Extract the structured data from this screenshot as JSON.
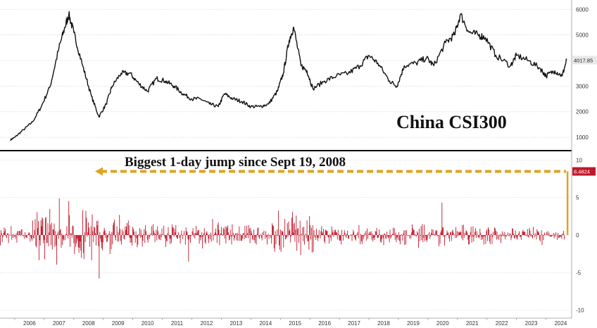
{
  "colors": {
    "price_line": "#111111",
    "return_bars": "#c0182b",
    "arrow": "#e0a321",
    "last_value_price_bg": "#e8e8e8",
    "last_value_return_bg": "#c0182b",
    "divider": "#000000"
  },
  "chart_data": [
    {
      "type": "line",
      "title": "China CSI300",
      "series": [
        {
          "x": [
            2005.85,
            2006.0,
            2006.3,
            2006.6,
            2006.9,
            2007.2,
            2007.5,
            2007.7,
            2007.83,
            2008.0,
            2008.3,
            2008.6,
            2008.85,
            2009.1,
            2009.3,
            2009.6,
            2009.9,
            2010.2,
            2010.5,
            2010.8,
            2011.1,
            2011.4,
            2011.7,
            2012.0,
            2012.3,
            2012.6,
            2012.9,
            2013.1,
            2013.4,
            2013.7,
            2014.0,
            2014.3,
            2014.6,
            2014.9,
            2015.1,
            2015.3,
            2015.45,
            2015.7,
            2015.9,
            2016.1,
            2016.5,
            2016.9,
            2017.3,
            2017.7,
            2018.0,
            2018.3,
            2018.7,
            2018.95,
            2019.2,
            2019.6,
            2019.95,
            2020.2,
            2020.6,
            2020.9,
            2021.1,
            2021.4,
            2021.7,
            2021.95,
            2022.3,
            2022.8,
            2023.0,
            2023.4,
            2023.8,
            2024.0,
            2024.3,
            2024.55,
            2024.7
          ],
          "y": [
            900,
            1000,
            1300,
            1600,
            2200,
            3000,
            4500,
            5300,
            5800,
            5100,
            3800,
            2600,
            1800,
            2300,
            3000,
            3500,
            3500,
            3100,
            2800,
            3300,
            3200,
            3000,
            2700,
            2500,
            2500,
            2300,
            2200,
            2700,
            2500,
            2400,
            2200,
            2200,
            2300,
            2800,
            3500,
            4800,
            5300,
            3800,
            3600,
            2900,
            3200,
            3400,
            3500,
            3800,
            4200,
            3900,
            3200,
            3000,
            3800,
            3900,
            4100,
            3800,
            4700,
            5000,
            5800,
            5100,
            5000,
            4900,
            4200,
            3800,
            4200,
            4000,
            3700,
            3400,
            3600,
            3400,
            4017.85
          ]
        }
      ],
      "yticks": [
        "1000",
        "2000",
        "3000",
        "4000",
        "5000",
        "6000"
      ],
      "ylim": [
        700,
        6200
      ],
      "last_value_label": "4017.85",
      "last_value": 4017.85
    },
    {
      "type": "bar",
      "annotation": "Biggest 1-day jump since Sept 19, 2008",
      "annotation_from_year": 2008.72,
      "annotation_to_year": 2024.73,
      "yticks": [
        "-10",
        "-5",
        "0",
        "5",
        "10"
      ],
      "ylim": [
        -10.5,
        10.5
      ],
      "last_value_label": "8.4824",
      "last_value": 8.4824
    }
  ],
  "x_axis": {
    "labels": [
      "2006",
      "2007",
      "2008",
      "2009",
      "2010",
      "2011",
      "2012",
      "2013",
      "2014",
      "2015",
      "2016",
      "2017",
      "2018",
      "2019",
      "2020",
      "2021",
      "2022",
      "2023",
      "2024"
    ],
    "xlim": [
      2005.5,
      2024.87
    ]
  }
}
